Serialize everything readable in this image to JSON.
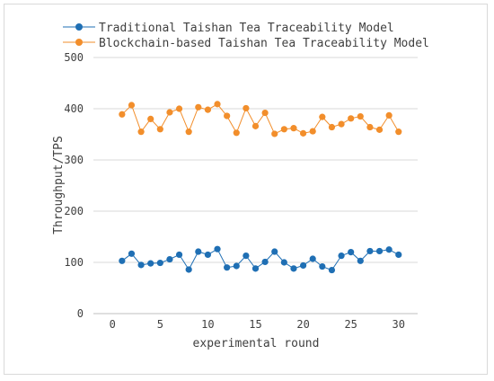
{
  "chart_data": {
    "type": "line",
    "title": "",
    "xlabel": "experimental round",
    "ylabel": "Throughput/TPS",
    "xlim": [
      -2,
      32
    ],
    "ylim": [
      0,
      500
    ],
    "xticks": [
      0,
      5,
      10,
      15,
      20,
      25,
      30
    ],
    "yticks": [
      0,
      100,
      200,
      300,
      400,
      500
    ],
    "grid": "horizontal",
    "legend_position": "top-left",
    "x": [
      1,
      2,
      3,
      4,
      5,
      6,
      7,
      8,
      9,
      10,
      11,
      12,
      13,
      14,
      15,
      16,
      17,
      18,
      19,
      20,
      21,
      22,
      23,
      24,
      25,
      26,
      27,
      28,
      29,
      30
    ],
    "series": [
      {
        "name": "Traditional Taishan Tea Traceability Model",
        "color": "#1f6fb4",
        "values": [
          103,
          117,
          95,
          98,
          99,
          106,
          115,
          86,
          121,
          115,
          126,
          90,
          93,
          113,
          88,
          101,
          121,
          100,
          88,
          94,
          107,
          92,
          85,
          113,
          120,
          103,
          122,
          122,
          125,
          115
        ]
      },
      {
        "name": "Blockchain-based Taishan Tea Traceability Model",
        "color": "#f28e2b",
        "values": [
          389,
          407,
          355,
          380,
          360,
          393,
          400,
          355,
          403,
          398,
          409,
          386,
          353,
          401,
          366,
          392,
          351,
          360,
          362,
          352,
          356,
          384,
          364,
          370,
          381,
          385,
          364,
          359,
          387,
          355
        ]
      }
    ]
  }
}
